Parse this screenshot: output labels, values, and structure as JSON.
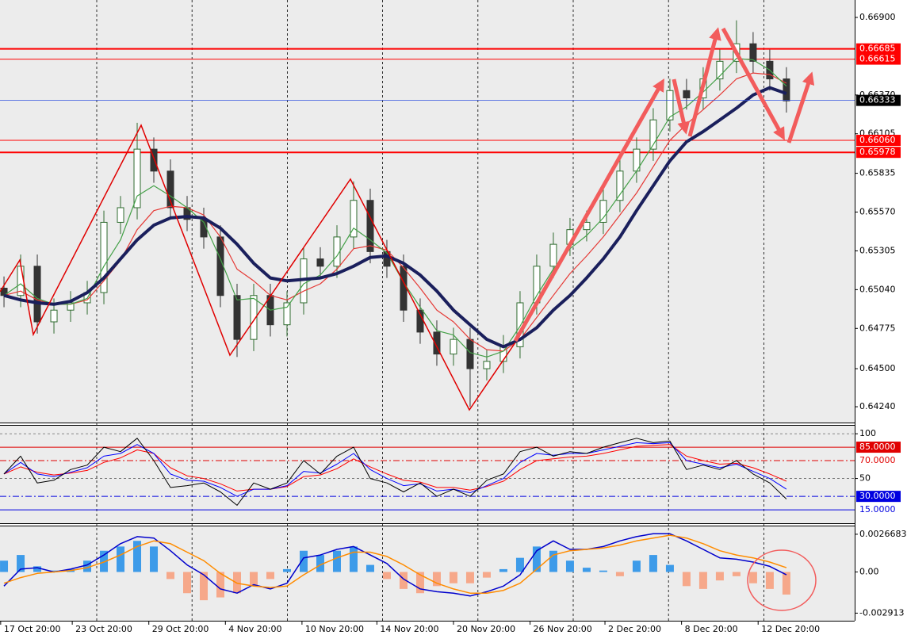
{
  "chart_data": [
    {
      "type": "candlestick",
      "x": [
        0,
        1,
        2,
        3,
        4,
        5,
        6,
        7,
        8,
        9,
        10,
        11,
        12,
        13,
        14,
        15,
        16,
        17,
        18,
        19,
        20,
        21,
        22,
        23,
        24,
        25,
        26,
        27,
        28,
        29,
        30,
        31,
        32,
        33,
        34,
        35,
        36,
        37,
        38,
        39,
        40,
        41,
        42,
        43,
        44,
        45,
        46,
        47
      ],
      "open": [
        0.6505,
        0.65,
        0.652,
        0.6482,
        0.649,
        0.6495,
        0.6502,
        0.655,
        0.656,
        0.66,
        0.6585,
        0.656,
        0.6552,
        0.654,
        0.65,
        0.647,
        0.65,
        0.648,
        0.6495,
        0.6525,
        0.652,
        0.654,
        0.6565,
        0.653,
        0.652,
        0.649,
        0.6475,
        0.646,
        0.647,
        0.645,
        0.6455,
        0.6465,
        0.6495,
        0.652,
        0.6535,
        0.6545,
        0.655,
        0.6565,
        0.6585,
        0.66,
        0.662,
        0.664,
        0.6635,
        0.6648,
        0.666,
        0.6672,
        0.666,
        0.6648
      ],
      "high": [
        0.6513,
        0.6528,
        0.6528,
        0.6498,
        0.6503,
        0.651,
        0.6558,
        0.6568,
        0.6618,
        0.6608,
        0.6593,
        0.6568,
        0.656,
        0.6548,
        0.6508,
        0.6508,
        0.6508,
        0.6503,
        0.6533,
        0.6533,
        0.6548,
        0.6578,
        0.6573,
        0.6538,
        0.6528,
        0.6498,
        0.6483,
        0.6478,
        0.6478,
        0.6463,
        0.6473,
        0.6503,
        0.6528,
        0.6543,
        0.6553,
        0.6558,
        0.6573,
        0.6593,
        0.6608,
        0.6628,
        0.6648,
        0.6648,
        0.6656,
        0.6668,
        0.6688,
        0.668,
        0.6668,
        0.6656
      ],
      "low": [
        0.6492,
        0.6492,
        0.6474,
        0.6474,
        0.6482,
        0.6487,
        0.6494,
        0.6542,
        0.6552,
        0.6577,
        0.6552,
        0.6544,
        0.6532,
        0.6492,
        0.6458,
        0.6462,
        0.6472,
        0.6472,
        0.6487,
        0.6512,
        0.6512,
        0.6532,
        0.6522,
        0.6512,
        0.6482,
        0.6467,
        0.6452,
        0.6452,
        0.6424,
        0.6442,
        0.6447,
        0.6457,
        0.6487,
        0.6512,
        0.6527,
        0.6537,
        0.6542,
        0.6557,
        0.6577,
        0.6592,
        0.6612,
        0.6627,
        0.6627,
        0.664,
        0.6652,
        0.6652,
        0.664,
        0.6625
      ],
      "close": [
        0.65,
        0.652,
        0.6482,
        0.649,
        0.6495,
        0.6502,
        0.655,
        0.656,
        0.66,
        0.6585,
        0.656,
        0.6552,
        0.654,
        0.65,
        0.647,
        0.65,
        0.648,
        0.6495,
        0.6525,
        0.652,
        0.654,
        0.6565,
        0.653,
        0.652,
        0.649,
        0.6475,
        0.646,
        0.647,
        0.645,
        0.6455,
        0.6465,
        0.6495,
        0.652,
        0.6535,
        0.6545,
        0.655,
        0.6565,
        0.6585,
        0.66,
        0.662,
        0.664,
        0.6635,
        0.6648,
        0.666,
        0.6672,
        0.666,
        0.6648,
        0.6633
      ],
      "up_color": "#2f6b2f",
      "down_color": "#333333",
      "series": [
        {
          "color": "#e53935",
          "width": 1.2,
          "values": [
            0.65,
            0.6503,
            0.6497,
            0.6494,
            0.6494,
            0.6497,
            0.651,
            0.6524,
            0.6545,
            0.6558,
            0.6561,
            0.656,
            0.6555,
            0.654,
            0.6518,
            0.651,
            0.65,
            0.6497,
            0.6503,
            0.6508,
            0.6518,
            0.6532,
            0.6534,
            0.6531,
            0.6519,
            0.6505,
            0.649,
            0.6482,
            0.647,
            0.6463,
            0.6462,
            0.647,
            0.6485,
            0.65,
            0.6515,
            0.6527,
            0.654,
            0.6555,
            0.657,
            0.6588,
            0.6606,
            0.6617,
            0.6627,
            0.6637,
            0.6648,
            0.6652,
            0.6651,
            0.6645
          ]
        },
        {
          "color": "#43a047",
          "width": 1.2,
          "values": [
            0.65,
            0.6508,
            0.6498,
            0.6494,
            0.6494,
            0.6498,
            0.652,
            0.6538,
            0.6568,
            0.6575,
            0.6568,
            0.656,
            0.655,
            0.6525,
            0.6497,
            0.6498,
            0.649,
            0.6492,
            0.6508,
            0.6514,
            0.6527,
            0.6546,
            0.6538,
            0.6529,
            0.6509,
            0.6492,
            0.6476,
            0.6473,
            0.6461,
            0.6458,
            0.6462,
            0.6479,
            0.65,
            0.6518,
            0.6532,
            0.6541,
            0.6553,
            0.6569,
            0.6585,
            0.6603,
            0.6622,
            0.6629,
            0.6639,
            0.665,
            0.6662,
            0.6661,
            0.6654,
            0.6643
          ]
        },
        {
          "color": "#1a1f5c",
          "width": 4,
          "values": [
            0.65,
            0.6497,
            0.6495,
            0.6494,
            0.6496,
            0.6502,
            0.6512,
            0.6525,
            0.6538,
            0.6548,
            0.6553,
            0.6554,
            0.6553,
            0.6546,
            0.6535,
            0.6522,
            0.6512,
            0.651,
            0.6511,
            0.6512,
            0.6515,
            0.652,
            0.6526,
            0.6527,
            0.6522,
            0.6514,
            0.6503,
            0.649,
            0.648,
            0.647,
            0.6465,
            0.647,
            0.6478,
            0.649,
            0.65,
            0.6512,
            0.6525,
            0.654,
            0.6558,
            0.6575,
            0.6592,
            0.6605,
            0.6612,
            0.662,
            0.6628,
            0.6637,
            0.6642,
            0.6638
          ]
        }
      ],
      "levels": [
        {
          "value": 0.66685,
          "label": "0.66685",
          "color": "#ff0000",
          "width": 2
        },
        {
          "value": 0.66615,
          "label": "0.66615",
          "color": "#ff0000",
          "width": 1
        },
        {
          "value": 0.6606,
          "label": "0.66060",
          "color": "#ff0000",
          "width": 1
        },
        {
          "value": 0.65978,
          "label": "0.65978",
          "color": "#ff0000",
          "width": 2
        }
      ],
      "current": {
        "value": 0.66333,
        "label": "0.66333",
        "color": "#3050e0"
      },
      "xlim": [
        -0.24,
        51.1
      ],
      "ylim": [
        0.64132,
        0.67019
      ],
      "yticks": [
        {
          "value": 0.669,
          "label": "0.66900"
        },
        {
          "value": 0.6637,
          "label": "0.66370"
        },
        {
          "value": 0.66105,
          "label": "0.66105"
        },
        {
          "value": 0.65835,
          "label": "0.65835"
        },
        {
          "value": 0.6557,
          "label": "0.65570"
        },
        {
          "value": 0.65305,
          "label": "0.65305"
        },
        {
          "value": 0.6504,
          "label": "0.65040"
        },
        {
          "value": 0.64775,
          "label": "0.64775"
        },
        {
          "value": 0.645,
          "label": "0.64500"
        },
        {
          "value": 0.6424,
          "label": "0.64240"
        }
      ]
    },
    {
      "type": "line",
      "x": [
        0,
        1,
        2,
        3,
        4,
        5,
        6,
        7,
        8,
        9,
        10,
        11,
        12,
        13,
        14,
        15,
        16,
        17,
        18,
        19,
        20,
        21,
        22,
        23,
        24,
        25,
        26,
        27,
        28,
        29,
        30,
        31,
        32,
        33,
        34,
        35,
        36,
        37,
        38,
        39,
        40,
        41,
        42,
        43,
        44,
        45,
        46,
        47
      ],
      "series": [
        {
          "color": "#ff0000",
          "width": 1,
          "values": [
            55,
            63,
            57,
            54,
            56,
            59,
            68,
            73,
            82,
            78,
            62,
            53,
            50,
            44,
            36,
            38,
            38,
            41,
            52,
            54,
            61,
            72,
            63,
            55,
            48,
            46,
            40,
            40,
            37,
            41,
            47,
            60,
            70,
            72,
            74,
            75,
            78,
            82,
            86,
            87,
            88,
            75,
            70,
            66,
            67,
            62,
            55,
            47
          ]
        },
        {
          "color": "#0000ff",
          "width": 1,
          "values": [
            55,
            68,
            55,
            52,
            57,
            62,
            75,
            78,
            88,
            78,
            55,
            48,
            47,
            40,
            30,
            38,
            38,
            42,
            58,
            56,
            66,
            78,
            60,
            50,
            42,
            44,
            36,
            38,
            34,
            42,
            50,
            68,
            78,
            76,
            78,
            78,
            82,
            86,
            90,
            89,
            90,
            70,
            66,
            62,
            66,
            58,
            50,
            38
          ]
        },
        {
          "color": "#000000",
          "width": 1,
          "values": [
            55,
            75,
            45,
            48,
            60,
            65,
            85,
            80,
            95,
            70,
            40,
            42,
            45,
            35,
            20,
            45,
            38,
            45,
            70,
            55,
            75,
            85,
            50,
            45,
            35,
            45,
            30,
            38,
            30,
            48,
            55,
            80,
            85,
            75,
            80,
            78,
            85,
            90,
            95,
            90,
            92,
            60,
            65,
            60,
            70,
            55,
            45,
            27
          ]
        }
      ],
      "levels": [
        {
          "value": 85,
          "label": "85.0000",
          "color": "#e00000",
          "boxed": true,
          "dash": "none"
        },
        {
          "value": 70,
          "label": "70.0000",
          "color": "#e00000",
          "boxed": false,
          "dash": "8 3 2 3"
        },
        {
          "value": 30,
          "label": "30.0000",
          "color": "#0000e0",
          "boxed": true,
          "dash": "8 3 2 3"
        },
        {
          "value": 15,
          "label": "15.0000",
          "color": "#0000e0",
          "boxed": false,
          "dash": "none"
        }
      ],
      "xlim": [
        -0.24,
        51.1
      ],
      "ylim": [
        0,
        109
      ],
      "yticks": [
        100,
        50
      ]
    },
    {
      "type": "bar",
      "x": [
        0,
        1,
        2,
        3,
        4,
        5,
        6,
        7,
        8,
        9,
        10,
        11,
        12,
        13,
        14,
        15,
        16,
        17,
        18,
        19,
        20,
        21,
        22,
        23,
        24,
        25,
        26,
        27,
        28,
        29,
        30,
        31,
        32,
        33,
        34,
        35,
        36,
        37,
        38,
        39,
        40,
        41,
        42,
        43,
        44,
        45,
        46,
        47
      ],
      "values": [
        0.0008,
        0.0012,
        0.0004,
        0.0001,
        0.0002,
        0.0008,
        0.0015,
        0.0018,
        0.0022,
        0.0018,
        -0.0005,
        -0.0015,
        -0.002,
        -0.0018,
        -0.0015,
        -0.001,
        -0.0005,
        0.0002,
        0.0015,
        0.0012,
        0.0015,
        0.0018,
        0.0005,
        -0.0005,
        -0.0012,
        -0.0015,
        -0.001,
        -0.0008,
        -0.0008,
        -0.0004,
        0.0002,
        0.001,
        0.0018,
        0.0015,
        0.0008,
        0.0003,
        0.0001,
        -0.0003,
        0.0008,
        0.0012,
        0.0005,
        -0.001,
        -0.0012,
        -0.0006,
        -0.0003,
        -0.0008,
        -0.0012,
        -0.0016
      ],
      "color": "#3d9be9",
      "negative_color": "#f6a88a",
      "series": [
        {
          "color": "#0000cc",
          "width": 1.5,
          "values": [
            -0.001,
            0.0002,
            0.0003,
            0,
            0.0002,
            0.0005,
            0.0012,
            0.002,
            0.0025,
            0.0024,
            0.0015,
            0.0005,
            -0.0002,
            -0.0012,
            -0.0015,
            -0.0009,
            -0.0012,
            -0.0008,
            0.001,
            0.0012,
            0.0016,
            0.0018,
            0.0012,
            0.0006,
            -0.0005,
            -0.0012,
            -0.0014,
            -0.0015,
            -0.0017,
            -0.0014,
            -0.001,
            -0.0002,
            0.0015,
            0.0022,
            0.0016,
            0.0016,
            0.0018,
            0.0022,
            0.0025,
            0.0027,
            0.0027,
            0.0022,
            0.0016,
            0.001,
            0.0009,
            0.0007,
            0.0004,
            -0.0002
          ]
        },
        {
          "color": "#ff8c00",
          "width": 1.5,
          "values": [
            -0.0008,
            -0.0004,
            -0.0001,
            0,
            0.0001,
            0.0003,
            0.0007,
            0.0012,
            0.0018,
            0.0022,
            0.002,
            0.0014,
            0.0008,
            -0.0001,
            -0.0008,
            -0.001,
            -0.0011,
            -0.001,
            -0.0002,
            0.0005,
            0.001,
            0.0014,
            0.0014,
            0.0011,
            0.0005,
            -0.0002,
            -0.0008,
            -0.0012,
            -0.0015,
            -0.0015,
            -0.0013,
            -0.0008,
            0.0002,
            0.0012,
            0.0015,
            0.0016,
            0.0017,
            0.0019,
            0.0022,
            0.0024,
            0.0026,
            0.0024,
            0.002,
            0.0015,
            0.0012,
            0.001,
            0.0007,
            0.0003
          ]
        }
      ],
      "xlim": [
        -0.24,
        51.1
      ],
      "ylim": [
        -0.00345,
        0.00328
      ],
      "yticks": [
        0.0026683,
        {
          "value": 0,
          "label": "0.00"
        },
        -0.002913
      ],
      "xticks": [
        {
          "value": -0.2,
          "label": "17 Oct 20:00"
        },
        {
          "value": 4.1,
          "label": "23 Oct 20:00"
        },
        {
          "value": 8.7,
          "label": "29 Oct 20:00"
        },
        {
          "value": 13.3,
          "label": "4 Nov 20:00"
        },
        {
          "value": 17.9,
          "label": "10 Nov 20:00"
        },
        {
          "value": 22.4,
          "label": "14 Nov 20:00"
        },
        {
          "value": 27.0,
          "label": "20 Nov 20:00"
        },
        {
          "value": 31.6,
          "label": "26 Nov 20:00"
        },
        {
          "value": 36.1,
          "label": "2 Dec 20:00"
        },
        {
          "value": 40.7,
          "label": "8 Dec 20:00"
        },
        {
          "value": 45.3,
          "label": "12 Dec 20:00"
        }
      ]
    }
  ]
}
